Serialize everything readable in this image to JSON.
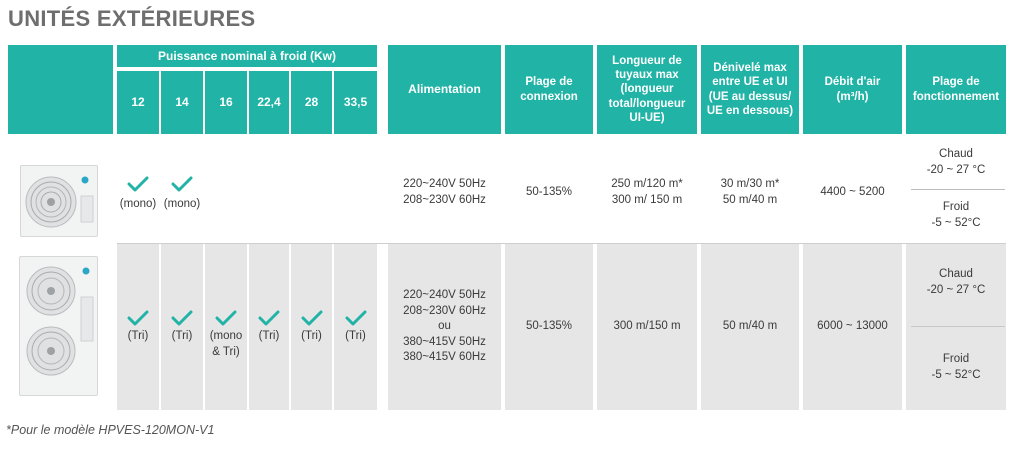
{
  "title": "UNITÉS EXTÉRIEURES",
  "colors": {
    "header": "#20b3a6",
    "row_bg": "#e6e6e6",
    "check": "#20b3a6"
  },
  "headers": {
    "capacity_group": "Puissance nominal à froid (Kw)",
    "capacities": [
      "12",
      "14",
      "16",
      "22,4",
      "28",
      "33,5"
    ],
    "alimentation": "Alimentation",
    "plage_connexion": [
      "Plage de",
      "connexion"
    ],
    "longueur": [
      "Longueur de",
      "tuyaux max",
      "(longueur",
      "total/longueur",
      "UI-UE)"
    ],
    "denivele": [
      "Dénivelé max",
      "entre UE et UI",
      "(UE au dessus/",
      "UE en dessous)"
    ],
    "debit": [
      "Débit d'air",
      "(m³/h)"
    ],
    "plage_fonct": [
      "Plage de",
      "fonctionnement"
    ]
  },
  "rows": [
    {
      "image": "outdoor-unit-single-fan",
      "checks": [
        "(mono)",
        "(mono)"
      ],
      "alimentation": [
        "220~240V 50Hz",
        "208~230V 60Hz"
      ],
      "connexion": "50-135%",
      "longueur": [
        "250 m/120 m*",
        "300 m/ 150 m"
      ],
      "denivele": [
        "30 m/30 m*",
        "50 m/40 m"
      ],
      "debit": "4400 ~ 5200",
      "chaud": [
        "Chaud",
        "-20 ~ 27 °C"
      ],
      "froid": [
        "Froid",
        "-5 ~ 52°C"
      ]
    },
    {
      "image": "outdoor-unit-double-fan",
      "checks": [
        "(Tri)",
        "(Tri)",
        "(mono & Tri)",
        "(Tri)",
        "(Tri)",
        "(Tri)"
      ],
      "check_lines_3": [
        "(mono",
        "& Tri)"
      ],
      "alimentation": [
        "220~240V 50Hz",
        "208~230V 60Hz",
        "ou",
        "380~415V 50Hz",
        "380~415V 60Hz"
      ],
      "connexion": "50-135%",
      "longueur": "300 m/150 m",
      "denivele": "50 m/40 m",
      "debit": "6000 ~ 13000",
      "chaud": [
        "Chaud",
        "-20 ~ 27 °C"
      ],
      "froid": [
        "Froid",
        "-5 ~ 52°C"
      ]
    }
  ],
  "footnote": "*Pour le modèle HPVES-120MON-V1"
}
